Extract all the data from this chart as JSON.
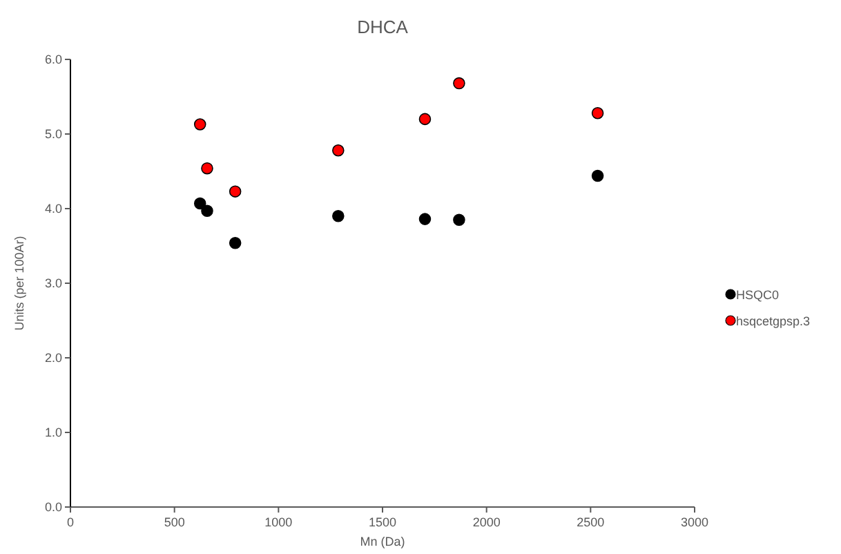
{
  "chart_data": {
    "type": "scatter",
    "title": "DHCA",
    "xlabel": "Mn (Da)",
    "ylabel": "Units (per 100Ar)",
    "xlim": [
      0,
      3000
    ],
    "xticks": [
      0,
      500,
      1000,
      1500,
      2000,
      2500,
      3000
    ],
    "ylim": [
      0,
      6
    ],
    "yticks": [
      {
        "value": 0,
        "label": "0.0"
      },
      {
        "value": 1,
        "label": "1.0"
      },
      {
        "value": 2,
        "label": "2.0"
      },
      {
        "value": 3,
        "label": "3.0"
      },
      {
        "value": 4,
        "label": "4.0"
      },
      {
        "value": 5,
        "label": "5.0"
      },
      {
        "value": 6,
        "label": "6.0"
      }
    ],
    "x": [
      623,
      657,
      792,
      1287,
      1704,
      1868,
      2534
    ],
    "marker": "circle",
    "legend": "right",
    "grid": false,
    "series": [
      {
        "name": "HSQC0",
        "color": "#000000",
        "values": [
          4.07,
          3.97,
          3.54,
          3.9,
          3.86,
          3.85,
          4.44
        ]
      },
      {
        "name": "hsqcetgpsp.3",
        "color": "#ff0000",
        "values": [
          5.13,
          4.54,
          4.23,
          4.78,
          5.2,
          5.68,
          5.28
        ]
      }
    ]
  }
}
